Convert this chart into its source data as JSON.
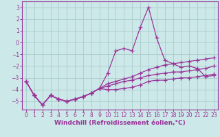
{
  "background_color": "#cce8e8",
  "grid_color": "#aacccc",
  "line_color": "#993399",
  "xlim": [
    -0.5,
    23.5
  ],
  "ylim": [
    -5.7,
    3.5
  ],
  "yticks": [
    -5,
    -4,
    -3,
    -2,
    -1,
    0,
    1,
    2,
    3
  ],
  "xticks": [
    0,
    1,
    2,
    3,
    4,
    5,
    6,
    7,
    8,
    9,
    10,
    11,
    12,
    13,
    14,
    15,
    16,
    17,
    18,
    19,
    20,
    21,
    22,
    23
  ],
  "xlabel": "Windchill (Refroidissement éolien,°C)",
  "series": [
    {
      "x": [
        0,
        1,
        2,
        3,
        4,
        5,
        6,
        7,
        8,
        9,
        10,
        11,
        12,
        13,
        14,
        15,
        16,
        17,
        18,
        19,
        20,
        21,
        22,
        23
      ],
      "y": [
        -3.3,
        -4.5,
        -5.3,
        -4.5,
        -4.8,
        -5.0,
        -4.8,
        -4.6,
        -4.3,
        -3.9,
        -2.6,
        -0.7,
        -0.5,
        -0.7,
        1.3,
        3.0,
        0.4,
        -1.5,
        -1.8,
        -2.1,
        -2.0,
        -2.2,
        -2.9,
        -2.8
      ]
    },
    {
      "x": [
        0,
        1,
        2,
        3,
        4,
        5,
        6,
        7,
        8,
        9,
        10,
        11,
        12,
        13,
        14,
        15,
        16,
        17,
        18,
        19,
        20,
        21,
        22,
        23
      ],
      "y": [
        -3.3,
        -4.5,
        -5.3,
        -4.5,
        -4.8,
        -5.0,
        -4.8,
        -4.6,
        -4.3,
        -3.9,
        -3.5,
        -3.3,
        -3.1,
        -2.9,
        -2.6,
        -2.3,
        -2.1,
        -1.9,
        -1.8,
        -1.7,
        -1.6,
        -1.5,
        -1.4,
        -1.3
      ]
    },
    {
      "x": [
        0,
        1,
        2,
        3,
        4,
        5,
        6,
        7,
        8,
        9,
        10,
        11,
        12,
        13,
        14,
        15,
        16,
        17,
        18,
        19,
        20,
        21,
        22,
        23
      ],
      "y": [
        -3.3,
        -4.5,
        -5.3,
        -4.5,
        -4.8,
        -5.0,
        -4.8,
        -4.6,
        -4.3,
        -3.9,
        -3.7,
        -3.5,
        -3.3,
        -3.2,
        -3.0,
        -2.8,
        -2.7,
        -2.6,
        -2.5,
        -2.5,
        -2.4,
        -2.3,
        -2.2,
        -2.0
      ]
    },
    {
      "x": [
        0,
        1,
        2,
        3,
        4,
        5,
        6,
        7,
        8,
        9,
        10,
        11,
        12,
        13,
        14,
        15,
        16,
        17,
        18,
        19,
        20,
        21,
        22,
        23
      ],
      "y": [
        -3.3,
        -4.5,
        -5.3,
        -4.5,
        -4.8,
        -5.0,
        -4.8,
        -4.6,
        -4.3,
        -3.9,
        -4.0,
        -4.0,
        -3.9,
        -3.8,
        -3.6,
        -3.3,
        -3.2,
        -3.2,
        -3.1,
        -3.0,
        -3.0,
        -2.9,
        -2.8,
        -2.7
      ]
    }
  ],
  "marker": "+",
  "markersize": 4,
  "linewidth": 0.9,
  "tick_fontsize": 5.5,
  "xlabel_fontsize": 6.5
}
